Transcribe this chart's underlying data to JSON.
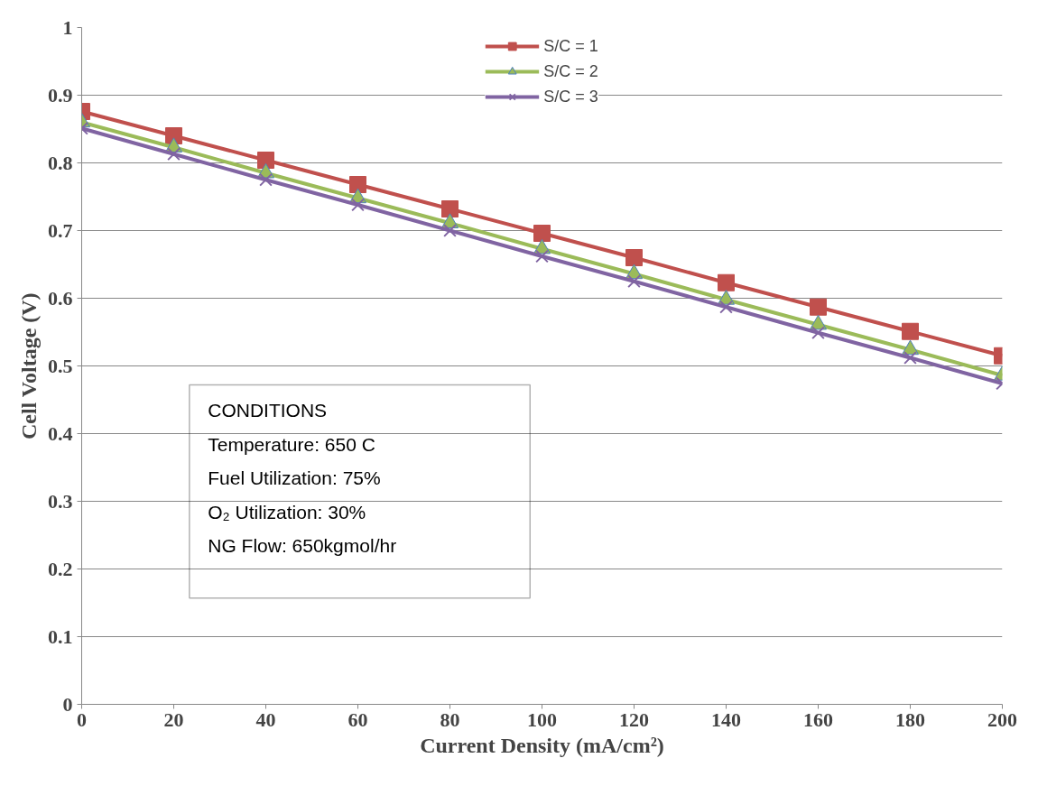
{
  "chart_data": {
    "type": "line",
    "xlabel": "Current Density (mA/cm²)",
    "ylabel": "Cell Voltage (V)",
    "x": [
      0,
      20,
      40,
      60,
      80,
      100,
      120,
      140,
      160,
      180,
      200
    ],
    "xlim": [
      0,
      200
    ],
    "xticks": [
      0,
      20,
      40,
      60,
      80,
      100,
      120,
      140,
      160,
      180,
      200
    ],
    "ylim": [
      0,
      1
    ],
    "yticks": [
      0,
      0.1,
      0.2,
      0.3,
      0.4,
      0.5,
      0.6,
      0.7,
      0.8,
      0.9,
      1
    ],
    "grid": "y",
    "legend": "top",
    "line_style": "solid",
    "series": [
      {
        "name": "S/C = 1",
        "color": "#c0504d",
        "marker": "square",
        "values": [
          0.876,
          0.84,
          0.804,
          0.768,
          0.732,
          0.696,
          0.66,
          0.623,
          0.587,
          0.551,
          0.515
        ]
      },
      {
        "name": "S/C = 2",
        "color": "#9bbb59",
        "marker": "triangle",
        "values": [
          0.86,
          0.823,
          0.785,
          0.748,
          0.711,
          0.673,
          0.636,
          0.598,
          0.561,
          0.524,
          0.486
        ]
      },
      {
        "name": "S/C = 3",
        "color": "#8064a2",
        "marker": "cross",
        "values": [
          0.851,
          0.813,
          0.775,
          0.738,
          0.7,
          0.662,
          0.625,
          0.587,
          0.549,
          0.512,
          0.474
        ]
      }
    ],
    "annotations": [
      "CONDITIONS",
      "Temperature: 650 C",
      "Fuel Utilization: 75%",
      "O₂ Utilization: 30%",
      "NG Flow: 650kgmol/hr"
    ]
  }
}
